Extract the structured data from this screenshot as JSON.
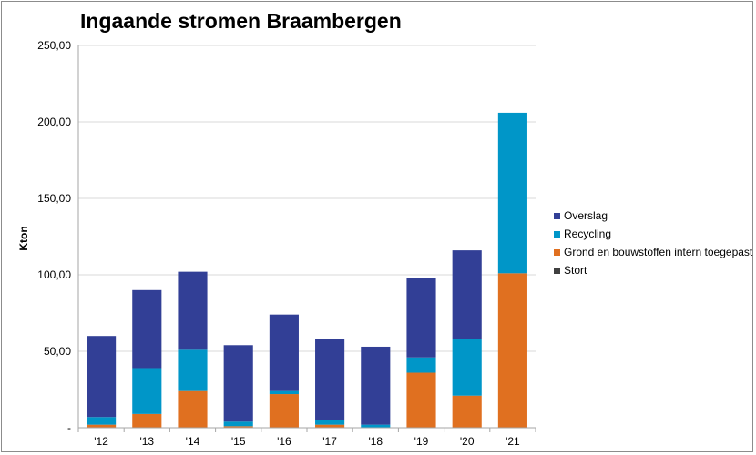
{
  "chart_data": {
    "type": "bar",
    "stacked": true,
    "title": "Ingaande stromen Braambergen",
    "ylabel": "Kton",
    "xlabel": "",
    "ylim": [
      0,
      250
    ],
    "yticks": [
      0,
      50,
      100,
      150,
      200,
      250
    ],
    "ytick_labels": [
      "-",
      "50,00",
      "100,00",
      "150,00",
      "200,00",
      "250,00"
    ],
    "grid": true,
    "legend_position": "right",
    "categories": [
      "'12",
      "'13",
      "'14",
      "'15",
      "'16",
      "'17",
      "'18",
      "'19",
      "'20",
      "'21"
    ],
    "series": [
      {
        "name": "Stort",
        "color": "#404040",
        "values": [
          0,
          0,
          0,
          0,
          0,
          0,
          0,
          0,
          0,
          0
        ]
      },
      {
        "name": "Grond en bouwstoffen intern toegepast",
        "color": "#E07020",
        "values": [
          2,
          9,
          24,
          1,
          22,
          2,
          0,
          36,
          21,
          101
        ]
      },
      {
        "name": "Recycling",
        "color": "#0096C8",
        "values": [
          5,
          30,
          27,
          3,
          2,
          3,
          2,
          10,
          37,
          105
        ]
      },
      {
        "name": "Overslag",
        "color": "#323F96",
        "values": [
          53,
          51,
          51,
          50,
          50,
          53,
          51,
          52,
          58,
          0
        ]
      }
    ],
    "legend_order": [
      "Overslag",
      "Recycling",
      "Grond en bouwstoffen intern toegepast",
      "Stort"
    ]
  }
}
